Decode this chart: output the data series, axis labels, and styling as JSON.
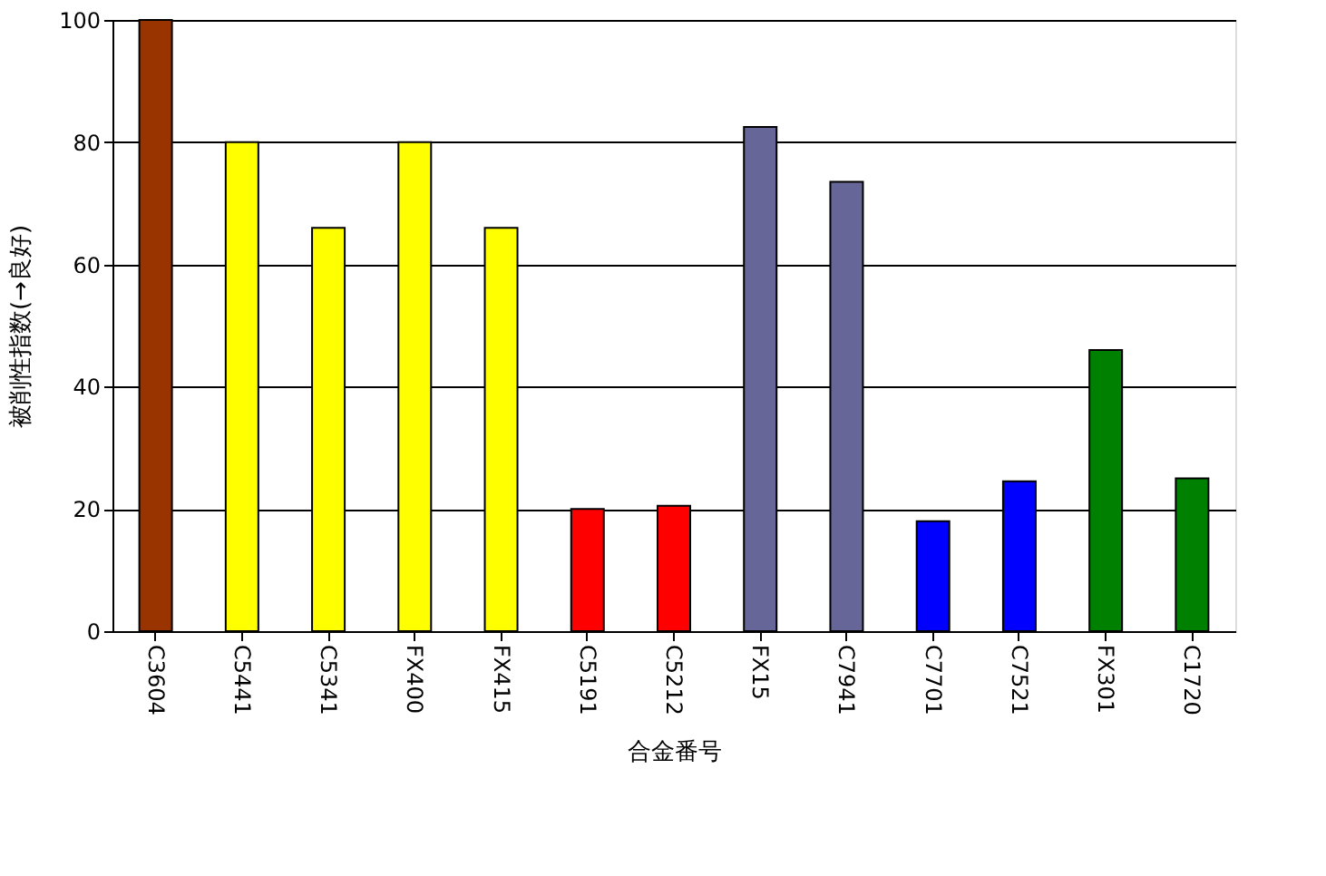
{
  "chart_data": {
    "type": "bar",
    "xlabel": "合金番号",
    "ylabel": "被削性指数(→良好)",
    "categories": [
      "C3604",
      "C5441",
      "C5341",
      "FX400",
      "FX415",
      "C5191",
      "C5212",
      "FX15",
      "C7941",
      "C7701",
      "C7521",
      "FX301",
      "C1720"
    ],
    "values": [
      100,
      80,
      66,
      80,
      66,
      20,
      20.5,
      82.5,
      73.5,
      18,
      24.5,
      46,
      25
    ],
    "colors": [
      "#993300",
      "#ffff00",
      "#ffff00",
      "#ffff00",
      "#ffff00",
      "#ff0000",
      "#ff0000",
      "#666699",
      "#666699",
      "#0000ff",
      "#0000ff",
      "#008000",
      "#008000"
    ],
    "ylim": [
      0,
      100
    ],
    "yticks": [
      0,
      20,
      40,
      60,
      80,
      100
    ],
    "grid": "y",
    "legend": false
  }
}
